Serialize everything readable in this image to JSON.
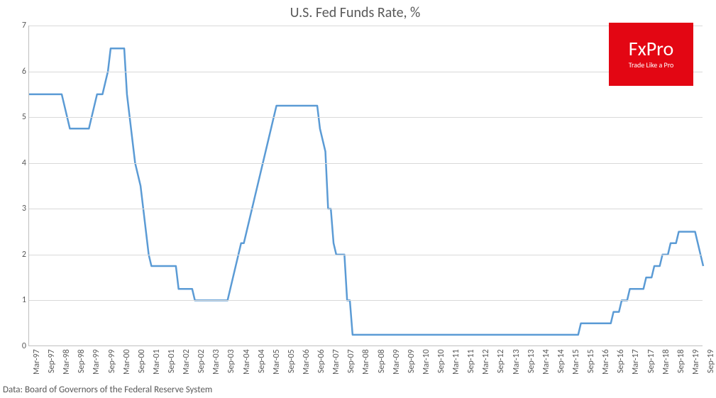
{
  "chart": {
    "type": "line",
    "title": "U.S. Fed Funds Rate, %",
    "title_fontsize": 20,
    "title_color": "#595959",
    "background_color": "#ffffff",
    "plot_background_color": "#ffffff",
    "grid_color": "#d9d9d9",
    "axis_color": "#bfbfbf",
    "tick_font_color": "#595959",
    "tick_fontsize": 12,
    "line_color": "#5b9bd5",
    "line_width": 2.5,
    "ylim": [
      0,
      7
    ],
    "ytick_step": 1,
    "yticks": [
      0,
      1,
      2,
      3,
      4,
      5,
      6,
      7
    ],
    "xticks": [
      "Mar-97",
      "Sep-97",
      "Mar-98",
      "Sep-98",
      "Mar-99",
      "Sep-99",
      "Mar-00",
      "Sep-00",
      "Mar-01",
      "Sep-01",
      "Mar-02",
      "Sep-02",
      "Mar-03",
      "Sep-03",
      "Mar-04",
      "Sep-04",
      "Mar-05",
      "Sep-05",
      "Mar-06",
      "Sep-06",
      "Mar-07",
      "Sep-07",
      "Mar-08",
      "Sep-08",
      "Mar-09",
      "Sep-09",
      "Mar-10",
      "Sep-10",
      "Mar-11",
      "Sep-11",
      "Mar-12",
      "Sep-12",
      "Mar-13",
      "Sep-13",
      "Mar-14",
      "Sep-14",
      "Mar-15",
      "Sep-15",
      "Mar-16",
      "Sep-16",
      "Mar-17",
      "Sep-17",
      "Mar-18",
      "Sep-18",
      "Mar-19",
      "Sep-19"
    ],
    "series": {
      "name": "Fed Funds Rate",
      "values": [
        5.5,
        5.5,
        5.5,
        5.5,
        5.5,
        5.5,
        5.5,
        5.5,
        5.5,
        5.5,
        5.5,
        5.5,
        5.5,
        5.25,
        5.0,
        4.75,
        4.75,
        4.75,
        4.75,
        4.75,
        4.75,
        4.75,
        4.75,
        5.0,
        5.25,
        5.5,
        5.5,
        5.5,
        5.75,
        6.0,
        6.5,
        6.5,
        6.5,
        6.5,
        6.5,
        6.5,
        5.5,
        5.0,
        4.5,
        4.0,
        3.75,
        3.5,
        3.0,
        2.5,
        2.0,
        1.75,
        1.75,
        1.75,
        1.75,
        1.75,
        1.75,
        1.75,
        1.75,
        1.75,
        1.75,
        1.25,
        1.25,
        1.25,
        1.25,
        1.25,
        1.25,
        1.0,
        1.0,
        1.0,
        1.0,
        1.0,
        1.0,
        1.0,
        1.0,
        1.0,
        1.0,
        1.0,
        1.0,
        1.0,
        1.25,
        1.5,
        1.75,
        2.0,
        2.25,
        2.25,
        2.5,
        2.75,
        3.0,
        3.25,
        3.5,
        3.75,
        4.0,
        4.25,
        4.5,
        4.75,
        5.0,
        5.25,
        5.25,
        5.25,
        5.25,
        5.25,
        5.25,
        5.25,
        5.25,
        5.25,
        5.25,
        5.25,
        5.25,
        5.25,
        5.25,
        5.25,
        5.25,
        4.75,
        4.5,
        4.25,
        3.0,
        3.0,
        2.25,
        2.0,
        2.0,
        2.0,
        2.0,
        1.0,
        1.0,
        0.25,
        0.25,
        0.25,
        0.25,
        0.25,
        0.25,
        0.25,
        0.25,
        0.25,
        0.25,
        0.25,
        0.25,
        0.25,
        0.25,
        0.25,
        0.25,
        0.25,
        0.25,
        0.25,
        0.25,
        0.25,
        0.25,
        0.25,
        0.25,
        0.25,
        0.25,
        0.25,
        0.25,
        0.25,
        0.25,
        0.25,
        0.25,
        0.25,
        0.25,
        0.25,
        0.25,
        0.25,
        0.25,
        0.25,
        0.25,
        0.25,
        0.25,
        0.25,
        0.25,
        0.25,
        0.25,
        0.25,
        0.25,
        0.25,
        0.25,
        0.25,
        0.25,
        0.25,
        0.25,
        0.25,
        0.25,
        0.25,
        0.25,
        0.25,
        0.25,
        0.25,
        0.25,
        0.25,
        0.25,
        0.25,
        0.25,
        0.25,
        0.25,
        0.25,
        0.25,
        0.25,
        0.25,
        0.25,
        0.25,
        0.25,
        0.25,
        0.25,
        0.25,
        0.25,
        0.25,
        0.25,
        0.25,
        0.25,
        0.25,
        0.5,
        0.5,
        0.5,
        0.5,
        0.5,
        0.5,
        0.5,
        0.5,
        0.5,
        0.5,
        0.5,
        0.5,
        0.75,
        0.75,
        0.75,
        1.0,
        1.0,
        1.0,
        1.25,
        1.25,
        1.25,
        1.25,
        1.25,
        1.25,
        1.5,
        1.5,
        1.5,
        1.75,
        1.75,
        1.75,
        2.0,
        2.0,
        2.0,
        2.25,
        2.25,
        2.25,
        2.5,
        2.5,
        2.5,
        2.5,
        2.5,
        2.5,
        2.5,
        2.25,
        2.0,
        1.75
      ]
    }
  },
  "logo": {
    "main": "FxPro",
    "sub": "Trade Like a Pro",
    "bg_color": "#e30613",
    "text_color": "#ffffff",
    "main_fontsize": 28,
    "sub_fontsize": 10
  },
  "source": {
    "text": "Data: Board of Governors of the Federal Reserve System",
    "fontsize": 13,
    "color": "#595959"
  }
}
